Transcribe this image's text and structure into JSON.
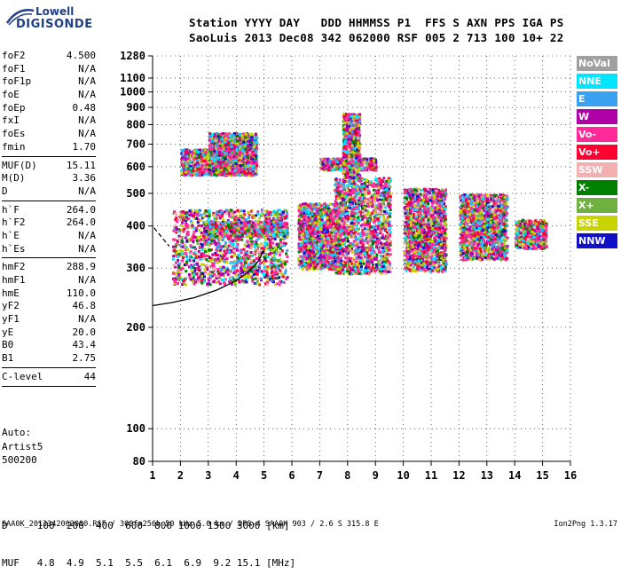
{
  "logo": {
    "line1": "Lowell",
    "line2": "DIGISONDE"
  },
  "header": {
    "row1": "Station YYYY DAY   DDD HHMMSS P1  FFS S AXN PPS IGA PS",
    "row2": "SaoLuis 2013 Dec08 342 062000 RSF 005 2 713 100 10+ 22"
  },
  "params": [
    {
      "label": "foF2",
      "value": "4.500"
    },
    {
      "label": "foF1",
      "value": "N/A"
    },
    {
      "label": "foF1p",
      "value": "N/A"
    },
    {
      "label": "foE",
      "value": "N/A"
    },
    {
      "label": "foEp",
      "value": "0.48"
    },
    {
      "label": "fxI",
      "value": "N/A"
    },
    {
      "label": "foEs",
      "value": "N/A"
    },
    {
      "label": "fmin",
      "value": "1.70"
    },
    {
      "sep": true
    },
    {
      "label": "MUF(D)",
      "value": "15.11"
    },
    {
      "label": "M(D)",
      "value": "3.36"
    },
    {
      "label": "D",
      "value": "N/A"
    },
    {
      "sep": true
    },
    {
      "label": "h`F",
      "value": "264.0"
    },
    {
      "label": "h`F2",
      "value": "264.0"
    },
    {
      "label": "h`E",
      "value": "N/A"
    },
    {
      "label": "h`Es",
      "value": "N/A"
    },
    {
      "sep": true
    },
    {
      "label": "hmF2",
      "value": "288.9"
    },
    {
      "label": "hmF1",
      "value": "N/A"
    },
    {
      "label": "hmE",
      "value": "110.0"
    },
    {
      "label": "yF2",
      "value": "46.8"
    },
    {
      "label": "yF1",
      "value": "N/A"
    },
    {
      "label": "yE",
      "value": "20.0"
    },
    {
      "label": "B0",
      "value": "43.4"
    },
    {
      "label": "B1",
      "value": "2.75"
    },
    {
      "sep": true
    },
    {
      "label": "C-level",
      "value": "44"
    },
    {
      "sep": true
    }
  ],
  "auto": {
    "line1": "Auto:",
    "line2": "Artist5",
    "line3": "500200"
  },
  "muf_table": {
    "row_d": "D     100  200  400  600  800 1000 1500 3000 [km]",
    "row_muf": "MUF   4.8  4.9  5.1  5.5  6.1  6.9  9.2 15.1 [MHz]"
  },
  "footer": {
    "left": "SAA0K_2013342062000.RSF / 300fx256h 50 kHz 5.0 km / DPS-4 SAA0K 903 / 2.6 S 315.8 E",
    "right": "Ion2Png 1.3.17"
  },
  "legend": [
    {
      "label": "NoVal",
      "color": "#a0a0a0"
    },
    {
      "label": "NNE",
      "color": "#00e5ff"
    },
    {
      "label": "E",
      "color": "#3aa0f0"
    },
    {
      "label": "W",
      "color": "#b000a8"
    },
    {
      "label": "Vo-",
      "color": "#ff2a9a"
    },
    {
      "label": "Vo+",
      "color": "#ff0030"
    },
    {
      "label": "SSW",
      "color": "#f2b0b0"
    },
    {
      "label": "X-",
      "color": "#008000"
    },
    {
      "label": "X+",
      "color": "#70b040"
    },
    {
      "label": "SSE",
      "color": "#c8d400"
    },
    {
      "label": "NNW",
      "color": "#1010c8"
    }
  ],
  "chart_data": {
    "type": "scatter",
    "xlabel": "",
    "ylabel": "",
    "xlim": [
      1,
      16
    ],
    "ylim": [
      80,
      1280
    ],
    "y_scale": "log",
    "grid": true,
    "x_ticks": [
      1,
      2,
      3,
      4,
      5,
      6,
      7,
      8,
      9,
      10,
      11,
      12,
      13,
      14,
      15,
      16
    ],
    "y_ticks": [
      80,
      100,
      200,
      300,
      400,
      500,
      600,
      700,
      800,
      900,
      1000,
      1100,
      1280
    ],
    "legend_placement": "right",
    "trace_curve": {
      "x": [
        1.0,
        1.7,
        2.5,
        3.3,
        4.0,
        4.5,
        4.8,
        5.0
      ],
      "y": [
        232,
        237,
        245,
        258,
        275,
        295,
        315,
        340
      ]
    },
    "dashed_curve": {
      "x": [
        1.05,
        1.6
      ],
      "y": [
        395,
        348
      ]
    },
    "clusters": [
      {
        "x0": 1.7,
        "x1": 5.8,
        "y0": 270,
        "y1": 450
      },
      {
        "x0": 2.8,
        "x1": 5.8,
        "y0": 375,
        "y1": 415
      },
      {
        "x0": 2.0,
        "x1": 4.7,
        "y0": 570,
        "y1": 680
      },
      {
        "x0": 3.0,
        "x1": 4.7,
        "y0": 660,
        "y1": 760
      },
      {
        "x0": 6.2,
        "x1": 7.7,
        "y0": 300,
        "y1": 470
      },
      {
        "x0": 7.0,
        "x1": 9.0,
        "y0": 590,
        "y1": 640
      },
      {
        "x0": 7.5,
        "x1": 9.5,
        "y0": 290,
        "y1": 560
      },
      {
        "x0": 7.8,
        "x1": 8.4,
        "y0": 560,
        "y1": 870
      },
      {
        "x0": 10.0,
        "x1": 11.5,
        "y0": 295,
        "y1": 520
      },
      {
        "x0": 12.0,
        "x1": 13.7,
        "y0": 320,
        "y1": 500
      },
      {
        "x0": 14.0,
        "x1": 15.1,
        "y0": 345,
        "y1": 420
      }
    ]
  }
}
